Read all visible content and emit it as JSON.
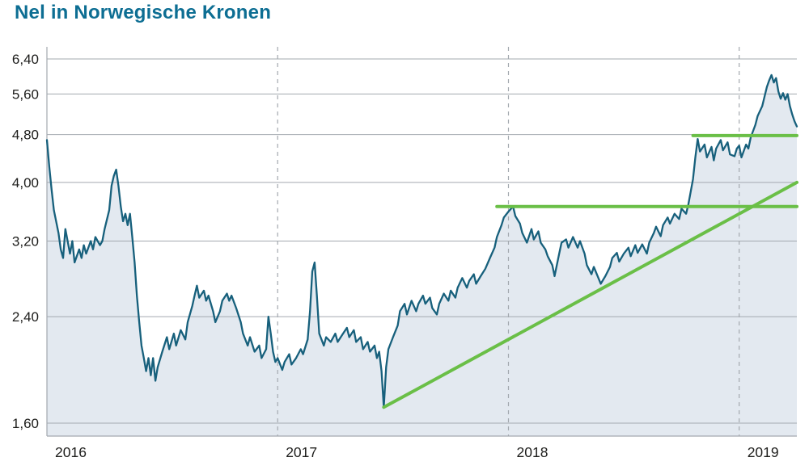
{
  "title": "Nel in Norwegische Kronen",
  "colors": {
    "title": "#0d6e93",
    "line": "#17607c",
    "area": "#e3e9f0",
    "trend": "#6abf47",
    "grid": "#a3a9af",
    "axis_text": "#1d1d1b"
  },
  "chart_data": {
    "type": "line",
    "title": "Nel in Norwegische Kronen",
    "currency_label": "Norwegische Kronen",
    "y_scale": "log",
    "ylim": [
      1.52,
      6.6
    ],
    "x_range": [
      2016.0,
      2019.25
    ],
    "y_ticks": [
      1.6,
      2.4,
      3.2,
      4.0,
      4.8,
      5.6,
      6.4
    ],
    "y_tick_labels": [
      "1,60",
      "2,40",
      "3,20",
      "4,00",
      "4,80",
      "5,60",
      "6,40"
    ],
    "x_ticks": [
      2016,
      2017,
      2018,
      2019
    ],
    "x_tick_labels": [
      "2016",
      "2017",
      "2018",
      "2019"
    ],
    "grid": "horizontal-solid, vertical-dashed-at-year-starts",
    "legend": "none",
    "series": [
      {
        "name": "Nel",
        "points": [
          [
            2016.0,
            4.7
          ],
          [
            2016.01,
            4.25
          ],
          [
            2016.02,
            3.9
          ],
          [
            2016.03,
            3.6
          ],
          [
            2016.05,
            3.3
          ],
          [
            2016.06,
            3.1
          ],
          [
            2016.07,
            3.0
          ],
          [
            2016.08,
            3.35
          ],
          [
            2016.1,
            3.05
          ],
          [
            2016.11,
            3.2
          ],
          [
            2016.12,
            2.95
          ],
          [
            2016.14,
            3.1
          ],
          [
            2016.15,
            3.0
          ],
          [
            2016.16,
            3.15
          ],
          [
            2016.17,
            3.05
          ],
          [
            2016.19,
            3.2
          ],
          [
            2016.2,
            3.1
          ],
          [
            2016.21,
            3.25
          ],
          [
            2016.23,
            3.15
          ],
          [
            2016.24,
            3.2
          ],
          [
            2016.25,
            3.35
          ],
          [
            2016.27,
            3.6
          ],
          [
            2016.28,
            3.95
          ],
          [
            2016.29,
            4.1
          ],
          [
            2016.3,
            4.2
          ],
          [
            2016.31,
            3.95
          ],
          [
            2016.32,
            3.65
          ],
          [
            2016.33,
            3.45
          ],
          [
            2016.34,
            3.55
          ],
          [
            2016.35,
            3.4
          ],
          [
            2016.36,
            3.55
          ],
          [
            2016.37,
            3.25
          ],
          [
            2016.38,
            2.95
          ],
          [
            2016.39,
            2.6
          ],
          [
            2016.4,
            2.35
          ],
          [
            2016.41,
            2.15
          ],
          [
            2016.42,
            2.05
          ],
          [
            2016.43,
            1.95
          ],
          [
            2016.44,
            2.05
          ],
          [
            2016.45,
            1.92
          ],
          [
            2016.46,
            2.05
          ],
          [
            2016.47,
            1.88
          ],
          [
            2016.48,
            1.98
          ],
          [
            2016.5,
            2.1
          ],
          [
            2016.52,
            2.22
          ],
          [
            2016.53,
            2.12
          ],
          [
            2016.55,
            2.25
          ],
          [
            2016.56,
            2.15
          ],
          [
            2016.58,
            2.28
          ],
          [
            2016.6,
            2.2
          ],
          [
            2016.61,
            2.35
          ],
          [
            2016.63,
            2.5
          ],
          [
            2016.64,
            2.6
          ],
          [
            2016.65,
            2.7
          ],
          [
            2016.66,
            2.58
          ],
          [
            2016.68,
            2.65
          ],
          [
            2016.69,
            2.55
          ],
          [
            2016.7,
            2.6
          ],
          [
            2016.72,
            2.45
          ],
          [
            2016.73,
            2.35
          ],
          [
            2016.75,
            2.45
          ],
          [
            2016.76,
            2.55
          ],
          [
            2016.78,
            2.62
          ],
          [
            2016.79,
            2.55
          ],
          [
            2016.8,
            2.6
          ],
          [
            2016.82,
            2.48
          ],
          [
            2016.84,
            2.35
          ],
          [
            2016.85,
            2.25
          ],
          [
            2016.87,
            2.15
          ],
          [
            2016.88,
            2.22
          ],
          [
            2016.9,
            2.1
          ],
          [
            2016.92,
            2.15
          ],
          [
            2016.93,
            2.05
          ],
          [
            2016.95,
            2.12
          ],
          [
            2016.96,
            2.4
          ],
          [
            2016.97,
            2.25
          ],
          [
            2016.98,
            2.1
          ],
          [
            2016.99,
            2.02
          ],
          [
            2017.0,
            2.05
          ],
          [
            2017.02,
            1.96
          ],
          [
            2017.03,
            2.02
          ],
          [
            2017.05,
            2.08
          ],
          [
            2017.06,
            2.0
          ],
          [
            2017.08,
            2.05
          ],
          [
            2017.1,
            2.12
          ],
          [
            2017.11,
            2.08
          ],
          [
            2017.13,
            2.2
          ],
          [
            2017.14,
            2.45
          ],
          [
            2017.15,
            2.85
          ],
          [
            2017.16,
            2.95
          ],
          [
            2017.17,
            2.6
          ],
          [
            2017.18,
            2.25
          ],
          [
            2017.2,
            2.15
          ],
          [
            2017.21,
            2.22
          ],
          [
            2017.23,
            2.18
          ],
          [
            2017.25,
            2.25
          ],
          [
            2017.26,
            2.18
          ],
          [
            2017.28,
            2.24
          ],
          [
            2017.3,
            2.3
          ],
          [
            2017.31,
            2.22
          ],
          [
            2017.33,
            2.28
          ],
          [
            2017.34,
            2.18
          ],
          [
            2017.36,
            2.22
          ],
          [
            2017.37,
            2.12
          ],
          [
            2017.39,
            2.18
          ],
          [
            2017.4,
            2.1
          ],
          [
            2017.42,
            2.15
          ],
          [
            2017.43,
            2.05
          ],
          [
            2017.44,
            2.1
          ],
          [
            2017.45,
            1.95
          ],
          [
            2017.46,
            1.7
          ],
          [
            2017.47,
            1.98
          ],
          [
            2017.48,
            2.12
          ],
          [
            2017.5,
            2.22
          ],
          [
            2017.52,
            2.32
          ],
          [
            2017.53,
            2.45
          ],
          [
            2017.55,
            2.52
          ],
          [
            2017.56,
            2.42
          ],
          [
            2017.58,
            2.55
          ],
          [
            2017.6,
            2.45
          ],
          [
            2017.61,
            2.52
          ],
          [
            2017.63,
            2.6
          ],
          [
            2017.64,
            2.52
          ],
          [
            2017.66,
            2.58
          ],
          [
            2017.67,
            2.48
          ],
          [
            2017.69,
            2.42
          ],
          [
            2017.7,
            2.52
          ],
          [
            2017.72,
            2.62
          ],
          [
            2017.74,
            2.55
          ],
          [
            2017.75,
            2.65
          ],
          [
            2017.77,
            2.58
          ],
          [
            2017.78,
            2.68
          ],
          [
            2017.8,
            2.78
          ],
          [
            2017.82,
            2.68
          ],
          [
            2017.83,
            2.75
          ],
          [
            2017.85,
            2.82
          ],
          [
            2017.86,
            2.72
          ],
          [
            2017.88,
            2.8
          ],
          [
            2017.9,
            2.88
          ],
          [
            2017.92,
            3.0
          ],
          [
            2017.94,
            3.12
          ],
          [
            2017.95,
            3.25
          ],
          [
            2017.97,
            3.4
          ],
          [
            2017.98,
            3.5
          ],
          [
            2018.0,
            3.58
          ],
          [
            2018.02,
            3.65
          ],
          [
            2018.03,
            3.52
          ],
          [
            2018.05,
            3.42
          ],
          [
            2018.06,
            3.3
          ],
          [
            2018.08,
            3.18
          ],
          [
            2018.1,
            3.35
          ],
          [
            2018.11,
            3.22
          ],
          [
            2018.13,
            3.32
          ],
          [
            2018.14,
            3.18
          ],
          [
            2018.16,
            3.1
          ],
          [
            2018.17,
            3.02
          ],
          [
            2018.19,
            2.92
          ],
          [
            2018.2,
            2.8
          ],
          [
            2018.22,
            3.05
          ],
          [
            2018.23,
            3.18
          ],
          [
            2018.25,
            3.22
          ],
          [
            2018.26,
            3.12
          ],
          [
            2018.28,
            3.25
          ],
          [
            2018.3,
            3.12
          ],
          [
            2018.31,
            3.2
          ],
          [
            2018.33,
            3.05
          ],
          [
            2018.34,
            2.92
          ],
          [
            2018.36,
            2.82
          ],
          [
            2018.37,
            2.9
          ],
          [
            2018.39,
            2.78
          ],
          [
            2018.4,
            2.72
          ],
          [
            2018.42,
            2.8
          ],
          [
            2018.44,
            2.9
          ],
          [
            2018.45,
            3.0
          ],
          [
            2018.47,
            3.06
          ],
          [
            2018.48,
            2.96
          ],
          [
            2018.5,
            3.05
          ],
          [
            2018.52,
            3.12
          ],
          [
            2018.53,
            3.02
          ],
          [
            2018.55,
            3.15
          ],
          [
            2018.56,
            3.06
          ],
          [
            2018.58,
            3.16
          ],
          [
            2018.6,
            3.05
          ],
          [
            2018.61,
            3.18
          ],
          [
            2018.63,
            3.3
          ],
          [
            2018.64,
            3.38
          ],
          [
            2018.66,
            3.26
          ],
          [
            2018.67,
            3.4
          ],
          [
            2018.69,
            3.5
          ],
          [
            2018.7,
            3.42
          ],
          [
            2018.72,
            3.55
          ],
          [
            2018.74,
            3.48
          ],
          [
            2018.75,
            3.62
          ],
          [
            2018.77,
            3.55
          ],
          [
            2018.78,
            3.68
          ],
          [
            2018.8,
            4.05
          ],
          [
            2018.81,
            4.4
          ],
          [
            2018.82,
            4.72
          ],
          [
            2018.83,
            4.5
          ],
          [
            2018.85,
            4.62
          ],
          [
            2018.86,
            4.4
          ],
          [
            2018.88,
            4.58
          ],
          [
            2018.89,
            4.35
          ],
          [
            2018.9,
            4.55
          ],
          [
            2018.92,
            4.7
          ],
          [
            2018.93,
            4.52
          ],
          [
            2018.95,
            4.66
          ],
          [
            2018.96,
            4.45
          ],
          [
            2018.98,
            4.42
          ],
          [
            2018.99,
            4.55
          ],
          [
            2019.0,
            4.6
          ],
          [
            2019.01,
            4.4
          ],
          [
            2019.03,
            4.62
          ],
          [
            2019.04,
            4.55
          ],
          [
            2019.05,
            4.75
          ],
          [
            2019.07,
            4.98
          ],
          [
            2019.08,
            5.15
          ],
          [
            2019.1,
            5.35
          ],
          [
            2019.11,
            5.55
          ],
          [
            2019.12,
            5.75
          ],
          [
            2019.13,
            5.9
          ],
          [
            2019.14,
            6.02
          ],
          [
            2019.15,
            5.85
          ],
          [
            2019.16,
            5.95
          ],
          [
            2019.17,
            5.65
          ],
          [
            2019.18,
            5.5
          ],
          [
            2019.19,
            5.62
          ],
          [
            2019.2,
            5.48
          ],
          [
            2019.21,
            5.6
          ],
          [
            2019.22,
            5.35
          ],
          [
            2019.23,
            5.18
          ],
          [
            2019.24,
            5.05
          ],
          [
            2019.25,
            4.95
          ]
        ]
      }
    ],
    "annotations": [
      {
        "type": "trendline",
        "name": "ascending-support-line",
        "from": [
          2017.46,
          1.7
        ],
        "to": [
          2019.25,
          4.0
        ]
      },
      {
        "type": "horizontal",
        "name": "resistance-line-lower",
        "level": 3.65,
        "from_t": 2017.95,
        "to_t": 2019.25
      },
      {
        "type": "horizontal",
        "name": "resistance-line-upper",
        "level": 4.78,
        "from_t": 2018.8,
        "to_t": 2019.25
      }
    ]
  }
}
